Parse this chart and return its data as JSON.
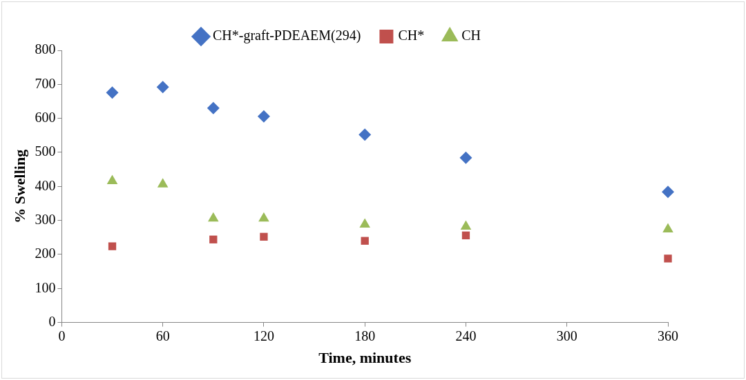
{
  "chart_data": {
    "type": "scatter",
    "xlabel": "Time, minutes",
    "ylabel": "% Swelling",
    "x": [
      30,
      60,
      90,
      120,
      180,
      240,
      360
    ],
    "series": [
      {
        "name": "CH*-graft-PDEAEM(294)",
        "color": "#4472c4",
        "marker": "diamond",
        "values": [
          676,
          692,
          630,
          606,
          552,
          484,
          384
        ]
      },
      {
        "name": "CH*",
        "color": "#c0504d",
        "marker": "square",
        "values": [
          224,
          null,
          244,
          252,
          240,
          256,
          188
        ]
      },
      {
        "name": "CH",
        "color": "#9bbb59",
        "marker": "triangle",
        "values": [
          416,
          406,
          306,
          306,
          288,
          282,
          274
        ]
      }
    ],
    "xlim": [
      0,
      360
    ],
    "xticks": [
      0,
      60,
      120,
      180,
      240,
      300,
      360
    ],
    "ylim": [
      0,
      800
    ],
    "yticks": [
      0,
      100,
      200,
      300,
      400,
      500,
      600,
      700,
      800
    ],
    "grid": false,
    "legend": "top"
  }
}
